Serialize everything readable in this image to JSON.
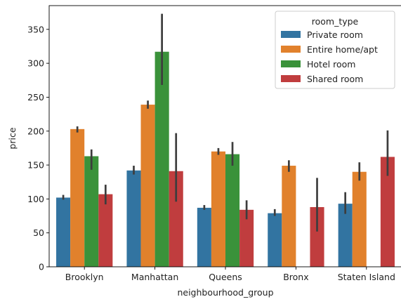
{
  "chart_data": {
    "type": "bar",
    "xlabel": "neighbourhood_group",
    "ylabel": "price",
    "ylim": [
      0,
      385
    ],
    "yticks": [
      0,
      50,
      100,
      150,
      200,
      250,
      300,
      350
    ],
    "categories": [
      "Brooklyn",
      "Manhattan",
      "Queens",
      "Bronx",
      "Staten Island"
    ],
    "legend": {
      "title": "room_type",
      "placement": "top-right"
    },
    "series": [
      {
        "name": "Private room",
        "color": "#3274a1",
        "values": [
          102,
          142,
          87,
          79,
          93
        ],
        "ci_low": [
          99,
          136,
          84,
          75,
          78
        ],
        "ci_high": [
          106,
          149,
          91,
          85,
          110
        ]
      },
      {
        "name": "Entire home/apt",
        "color": "#e1812c",
        "values": [
          203,
          239,
          170,
          149,
          140
        ],
        "ci_low": [
          198,
          233,
          165,
          140,
          127
        ],
        "ci_high": [
          207,
          245,
          175,
          157,
          154
        ]
      },
      {
        "name": "Hotel room",
        "color": "#3a923a",
        "values": [
          163,
          317,
          166,
          null,
          null
        ],
        "ci_low": [
          143,
          268,
          149,
          null,
          null
        ],
        "ci_high": [
          173,
          373,
          184,
          null,
          null
        ]
      },
      {
        "name": "Shared room",
        "color": "#c03d3e",
        "values": [
          107,
          141,
          84,
          88,
          162
        ],
        "ci_low": [
          92,
          96,
          70,
          52,
          134
        ],
        "ci_high": [
          121,
          197,
          98,
          131,
          201
        ]
      }
    ]
  }
}
